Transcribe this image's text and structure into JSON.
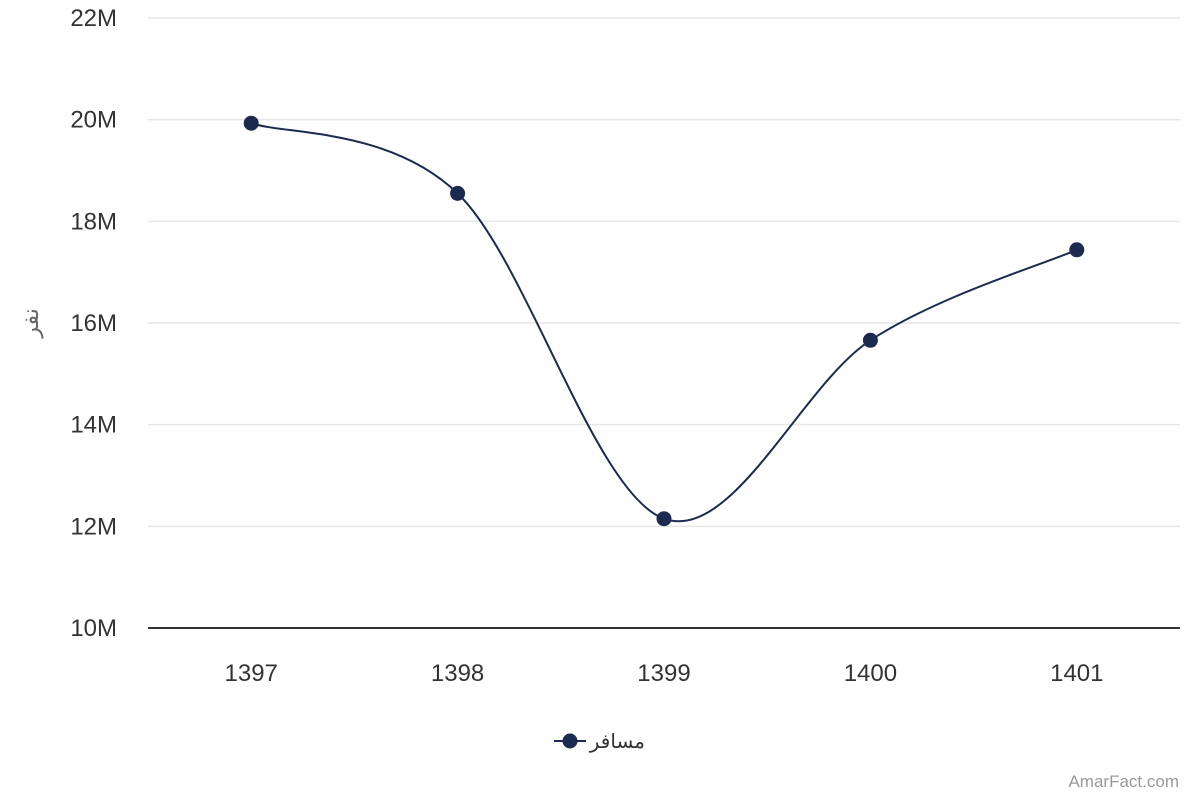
{
  "chart_data": {
    "type": "line",
    "curve": "smooth",
    "categories": [
      "1397",
      "1398",
      "1399",
      "1400",
      "1401"
    ],
    "series": [
      {
        "name": "مسافر",
        "values": [
          19930000,
          18550000,
          12150000,
          15660000,
          17440000
        ],
        "color": "#1b2a4e"
      }
    ],
    "ylabel": "نفر",
    "ylim": [
      10000000,
      22000000
    ],
    "yticks": [
      10000000,
      12000000,
      14000000,
      16000000,
      18000000,
      20000000,
      22000000
    ],
    "ytick_labels": [
      "10M",
      "12M",
      "14M",
      "16M",
      "18M",
      "20M",
      "22M"
    ],
    "grid": true,
    "legend": "bottom-center"
  },
  "credit": "AmarFact.com",
  "colors": {
    "line": "#1b2a4e",
    "grid": "#e6e6e6",
    "axis": "#333333"
  }
}
